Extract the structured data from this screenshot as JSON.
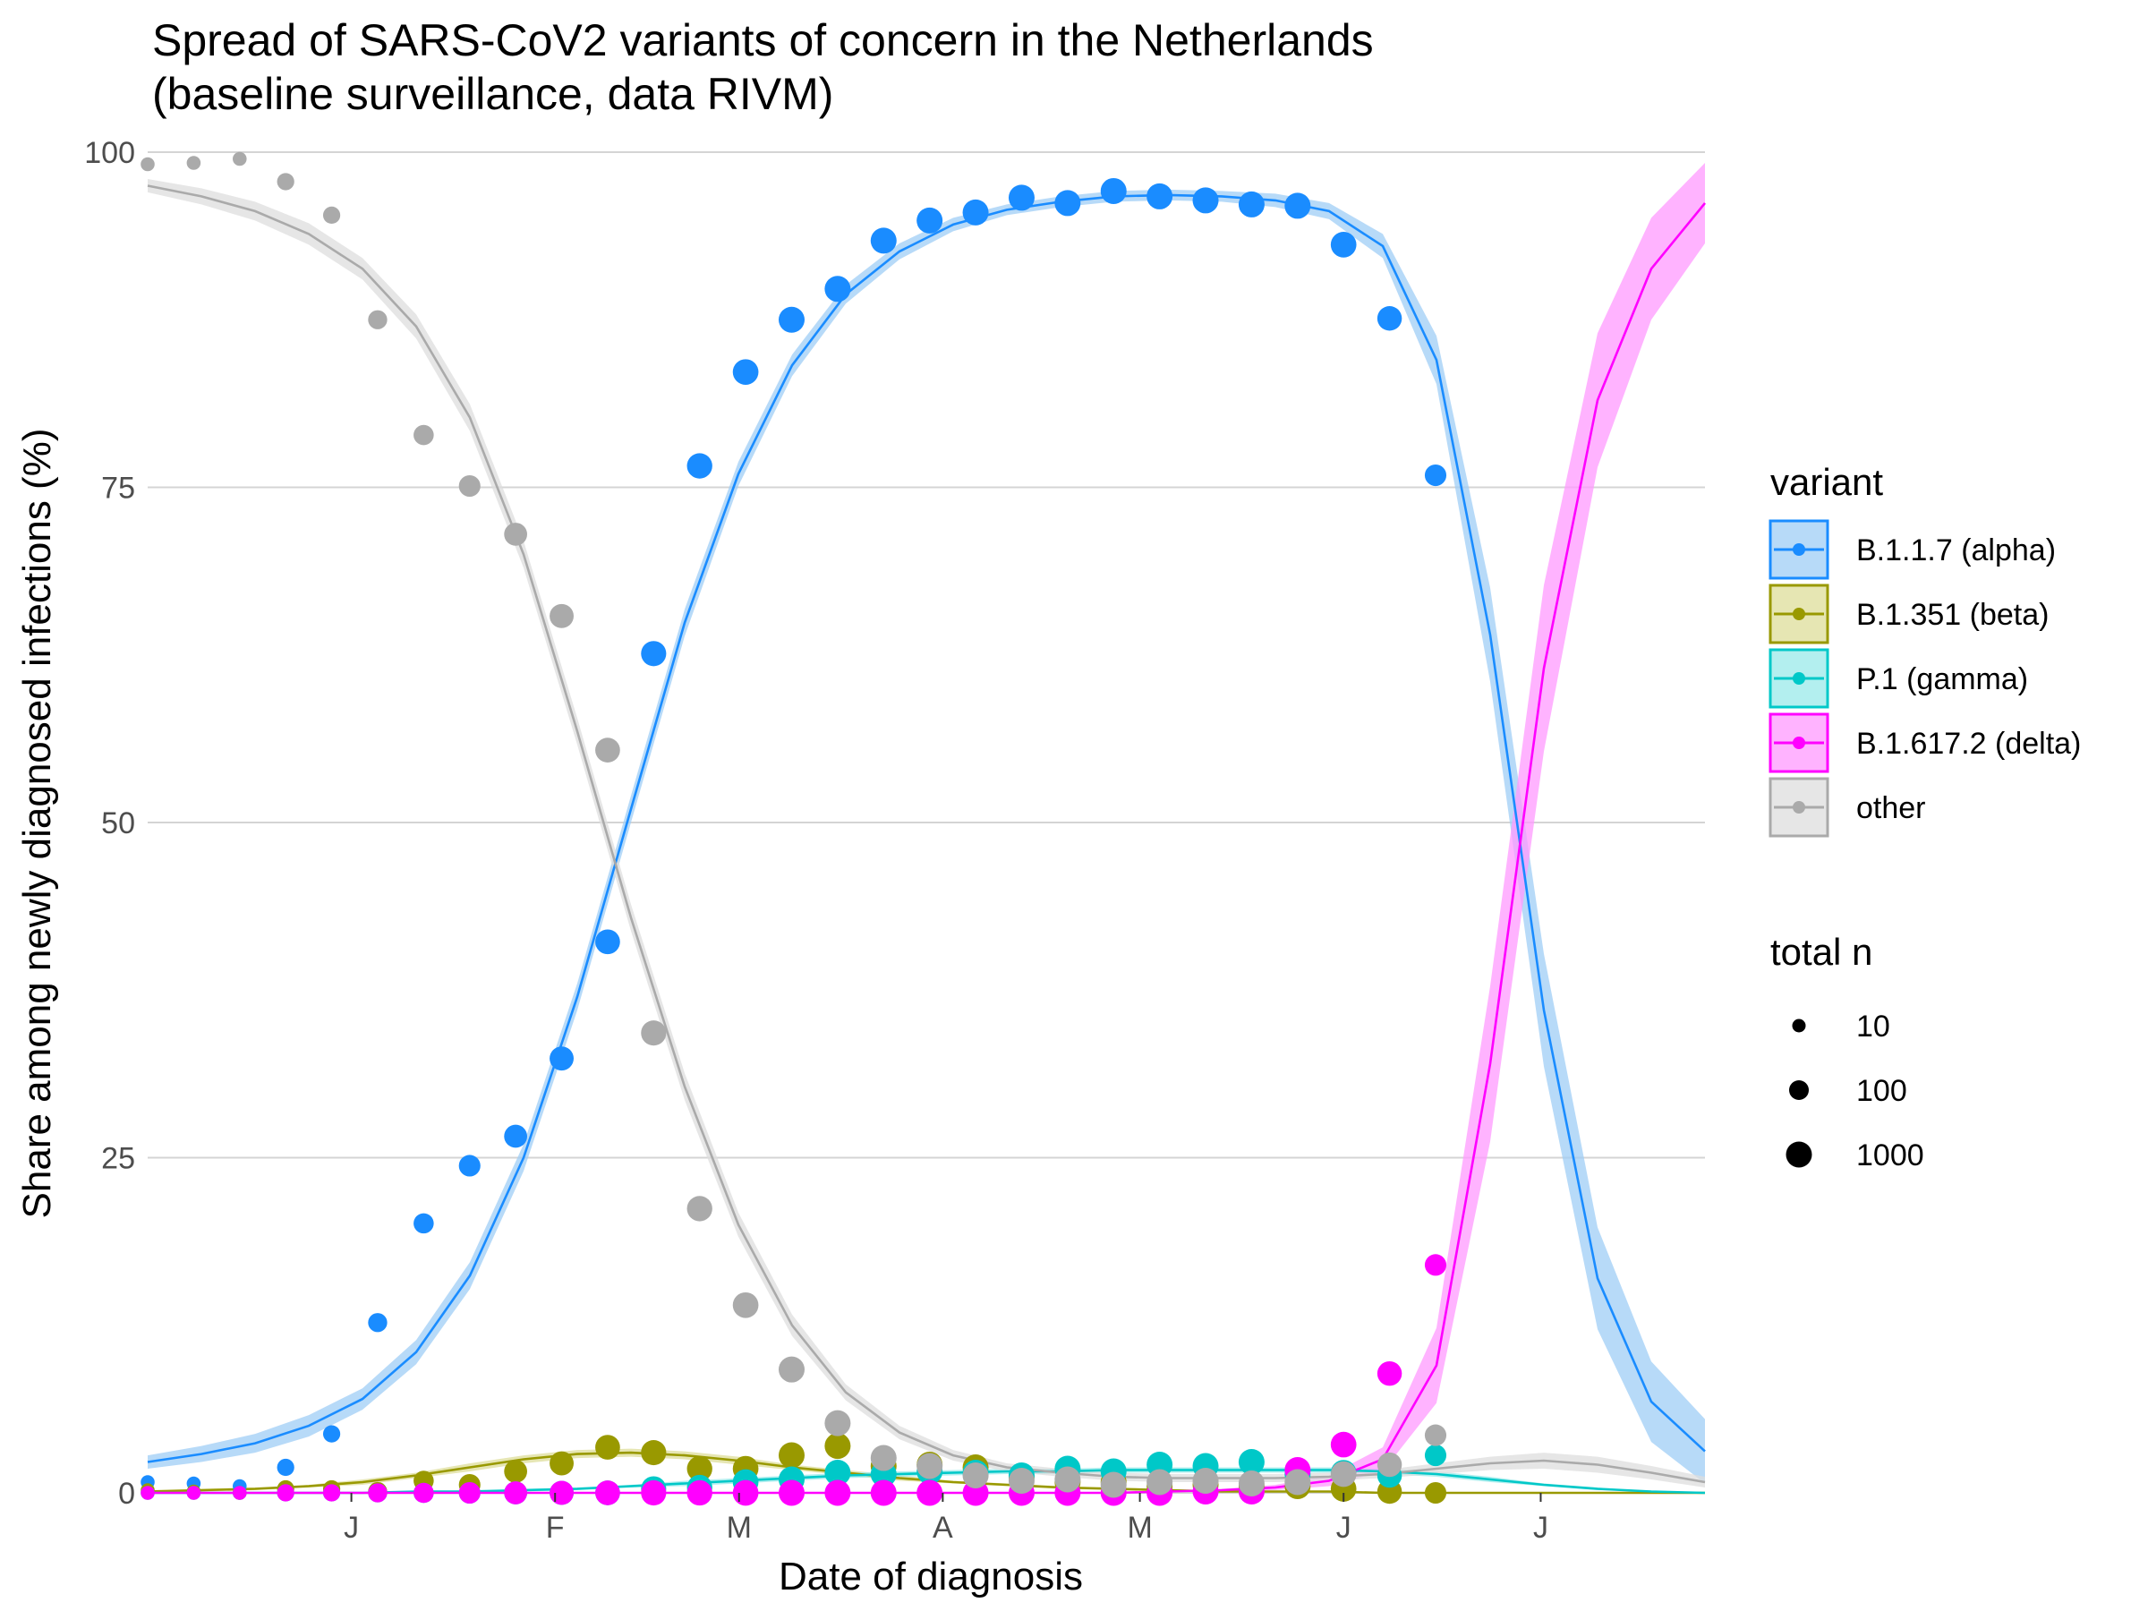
{
  "chart_data": {
    "type": "scatter",
    "title_line1": "Spread of SARS-CoV2 variants of concern in the Netherlands",
    "title_line2": "(baseline surveillance, data RIVM)",
    "xlabel": "Date of diagnosis",
    "ylabel": "Share among newly diagnosed infections (%)",
    "xlim": [
      "2020-12-01",
      "2021-07-26"
    ],
    "ylim": [
      0,
      100
    ],
    "yticks": [
      0,
      25,
      50,
      75,
      100
    ],
    "xticks": [
      {
        "date": "2021-01-01",
        "label": "J"
      },
      {
        "date": "2021-02-01",
        "label": "F"
      },
      {
        "date": "2021-03-01",
        "label": "M"
      },
      {
        "date": "2021-04-01",
        "label": "A"
      },
      {
        "date": "2021-05-01",
        "label": "M"
      },
      {
        "date": "2021-06-01",
        "label": "J"
      },
      {
        "date": "2021-07-01",
        "label": "J"
      }
    ],
    "grid": true,
    "legend": {
      "position": "right",
      "variant_title": "variant",
      "size_title": "total n",
      "size_entries": [
        {
          "label": "10",
          "n": 10
        },
        {
          "label": "100",
          "n": 100
        },
        {
          "label": "1000",
          "n": 1000
        }
      ]
    },
    "point_dates": [
      "2020-12-01",
      "2020-12-08",
      "2020-12-15",
      "2020-12-22",
      "2020-12-29",
      "2021-01-05",
      "2021-01-12",
      "2021-01-19",
      "2021-01-26",
      "2021-02-02",
      "2021-02-09",
      "2021-02-16",
      "2021-02-23",
      "2021-03-02",
      "2021-03-09",
      "2021-03-16",
      "2021-03-23",
      "2021-03-30",
      "2021-04-06",
      "2021-04-13",
      "2021-04-20",
      "2021-04-27",
      "2021-05-04",
      "2021-05-11",
      "2021-05-18",
      "2021-05-25",
      "2021-06-01",
      "2021-06-08",
      "2021-06-15"
    ],
    "total_n": [
      12,
      12,
      12,
      40,
      40,
      80,
      120,
      200,
      340,
      500,
      650,
      750,
      800,
      900,
      1000,
      1000,
      1000,
      1000,
      1000,
      1000,
      1000,
      1000,
      1000,
      1000,
      1000,
      1000,
      900,
      600,
      200
    ],
    "series": [
      {
        "name": "B.1.1.7 (alpha)",
        "color": "#1a8cff",
        "ribbon_color": "#9fcdf5",
        "points": [
          0.8,
          0.7,
          0.5,
          1.9,
          4.4,
          12.7,
          20.1,
          24.4,
          26.6,
          32.4,
          41.1,
          62.6,
          76.6,
          83.6,
          87.5,
          89.8,
          93.4,
          94.9,
          95.5,
          96.6,
          96.2,
          97.1,
          96.7,
          96.4,
          96.1,
          96.0,
          93.1,
          87.6,
          75.9
        ],
        "fit": [
          2.3,
          2.9,
          3.7,
          5.0,
          7.0,
          10.5,
          16.2,
          25.0,
          37.0,
          51.0,
          64.9,
          76.0,
          84.1,
          89.4,
          92.6,
          94.6,
          95.7,
          96.3,
          96.7,
          96.8,
          96.7,
          96.4,
          95.6,
          93.0,
          84.5,
          64.0,
          36.0,
          16.0,
          6.8,
          3.1
        ],
        "band": [
          0.5,
          0.6,
          0.7,
          0.8,
          0.8,
          0.9,
          1.0,
          1.0,
          1.0,
          1.0,
          1.0,
          0.9,
          0.8,
          0.7,
          0.6,
          0.5,
          0.4,
          0.4,
          0.4,
          0.4,
          0.4,
          0.5,
          0.6,
          0.9,
          1.8,
          3.5,
          4.2,
          3.8,
          3.0,
          2.4
        ]
      },
      {
        "name": "B.1.351 (beta)",
        "color": "#999900",
        "ribbon_color": "#dede9a",
        "points": [
          0.2,
          0.1,
          0.0,
          0.3,
          0.3,
          0.1,
          0.9,
          0.6,
          1.6,
          2.2,
          3.4,
          3.0,
          1.8,
          1.8,
          2.8,
          3.5,
          2.0,
          2.1,
          1.9,
          1.2,
          0.8,
          0.8,
          0.5,
          0.6,
          0.5,
          0.5,
          0.3,
          0.1,
          0.0
        ],
        "fit": [
          0.1,
          0.2,
          0.3,
          0.5,
          0.8,
          1.3,
          1.9,
          2.5,
          2.9,
          3.0,
          2.8,
          2.4,
          1.9,
          1.5,
          1.1,
          0.8,
          0.6,
          0.4,
          0.3,
          0.2,
          0.1,
          0.1,
          0.1,
          0.0,
          0.0,
          0.0,
          0.0,
          0.0,
          0.0,
          0.0
        ],
        "band": [
          0.1,
          0.1,
          0.1,
          0.1,
          0.2,
          0.2,
          0.3,
          0.3,
          0.3,
          0.3,
          0.3,
          0.3,
          0.2,
          0.2,
          0.2,
          0.1,
          0.1,
          0.1,
          0.1,
          0.1,
          0.0,
          0.0,
          0.0,
          0.0,
          0.0,
          0.0,
          0.0,
          0.0,
          0.0,
          0.0
        ]
      },
      {
        "name": "P.1 (gamma)",
        "color": "#00c8c8",
        "ribbon_color": "#9ae9e9",
        "points": [
          0.0,
          0.0,
          0.0,
          0.0,
          0.0,
          0.0,
          0.0,
          0.0,
          0.0,
          0.0,
          0.0,
          0.3,
          0.4,
          0.8,
          1.0,
          1.5,
          1.4,
          1.6,
          1.5,
          1.3,
          1.8,
          1.6,
          2.1,
          2.0,
          2.3,
          1.4,
          1.5,
          1.3,
          2.8
        ],
        "fit": [
          0.0,
          0.0,
          0.0,
          0.0,
          0.0,
          0.1,
          0.1,
          0.2,
          0.3,
          0.5,
          0.7,
          0.9,
          1.1,
          1.3,
          1.4,
          1.5,
          1.6,
          1.6,
          1.7,
          1.7,
          1.7,
          1.7,
          1.7,
          1.6,
          1.4,
          1.0,
          0.6,
          0.3,
          0.1,
          0.0
        ],
        "band": [
          0.0,
          0.0,
          0.0,
          0.0,
          0.0,
          0.0,
          0.1,
          0.1,
          0.1,
          0.1,
          0.2,
          0.2,
          0.2,
          0.2,
          0.2,
          0.2,
          0.2,
          0.2,
          0.2,
          0.2,
          0.2,
          0.2,
          0.2,
          0.2,
          0.2,
          0.2,
          0.1,
          0.1,
          0.0,
          0.0
        ]
      },
      {
        "name": "B.1.617.2 (delta)",
        "color": "#ff00ff",
        "ribbon_color": "#ff99ff",
        "points": [
          0.0,
          0.0,
          0.0,
          0.0,
          0.0,
          0.0,
          0.0,
          0.0,
          0.0,
          0.0,
          0.0,
          0.0,
          0.0,
          0.0,
          0.0,
          0.0,
          0.0,
          0.0,
          0.0,
          0.0,
          0.0,
          0.0,
          0.0,
          0.1,
          0.1,
          1.7,
          3.6,
          8.9,
          17.0
        ],
        "fit": [
          0.0,
          0.0,
          0.0,
          0.0,
          0.0,
          0.0,
          0.0,
          0.0,
          0.0,
          0.0,
          0.0,
          0.0,
          0.0,
          0.0,
          0.0,
          0.0,
          0.0,
          0.0,
          0.0,
          0.1,
          0.2,
          0.4,
          0.9,
          2.5,
          9.5,
          32.0,
          61.5,
          81.5,
          91.3,
          96.2
        ],
        "band": [
          0.0,
          0.0,
          0.0,
          0.0,
          0.0,
          0.0,
          0.0,
          0.0,
          0.0,
          0.0,
          0.0,
          0.0,
          0.0,
          0.0,
          0.0,
          0.0,
          0.0,
          0.0,
          0.0,
          0.0,
          0.1,
          0.2,
          0.4,
          0.9,
          2.8,
          5.8,
          6.2,
          5.0,
          3.8,
          3.0
        ]
      },
      {
        "name": "other",
        "color": "#aaaaaa",
        "ribbon_color": "#dddddd",
        "points": [
          99.1,
          99.2,
          99.5,
          97.8,
          95.3,
          87.5,
          78.9,
          75.1,
          71.5,
          65.4,
          55.4,
          34.3,
          21.2,
          14.0,
          9.2,
          5.2,
          2.6,
          2.0,
          1.3,
          0.9,
          1.0,
          0.6,
          0.8,
          0.9,
          0.7,
          0.8,
          1.4,
          2.1,
          4.3
        ],
        "fit": [
          97.5,
          96.7,
          95.6,
          93.9,
          91.3,
          87.0,
          80.2,
          70.0,
          56.8,
          42.9,
          30.3,
          20.0,
          12.5,
          7.5,
          4.5,
          2.8,
          1.9,
          1.5,
          1.2,
          1.1,
          1.1,
          1.1,
          1.2,
          1.4,
          1.8,
          2.2,
          2.4,
          2.1,
          1.5,
          0.8
        ],
        "band": [
          0.5,
          0.6,
          0.7,
          0.8,
          0.8,
          0.9,
          1.0,
          1.0,
          1.0,
          1.0,
          1.0,
          0.9,
          0.8,
          0.6,
          0.5,
          0.4,
          0.3,
          0.3,
          0.3,
          0.3,
          0.3,
          0.3,
          0.3,
          0.3,
          0.4,
          0.5,
          0.6,
          0.6,
          0.5,
          0.4
        ]
      }
    ]
  }
}
